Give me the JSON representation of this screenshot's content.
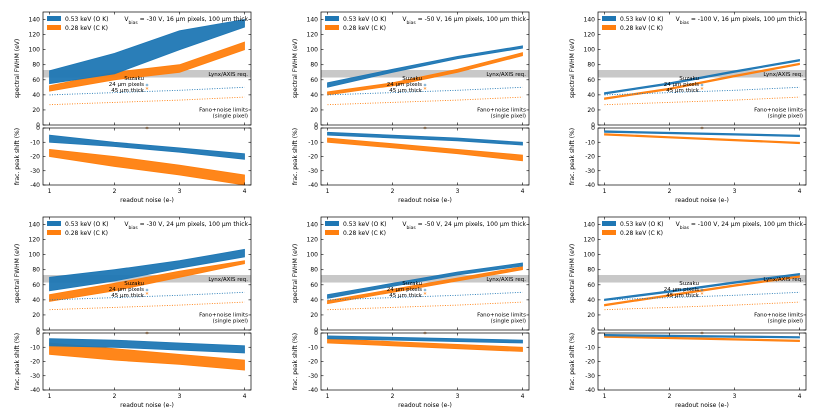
{
  "figure": {
    "colors": {
      "blue": "#1f77b4",
      "orange": "#ff7f0e",
      "band": "#c8c8c8",
      "axis": "#000000"
    },
    "legend": [
      "0.53 keV (O K)",
      "0.28 keV (C K)"
    ],
    "annotations": {
      "lynx": "Lynx/AXIS req.",
      "suzaku": "Suzaku",
      "px24": "24 µm pixels",
      "thick45": "45 µm thick",
      "fano1": "Fano+noise limits",
      "fano2": "(single pixel)"
    },
    "fwhm_axis": {
      "label": "spectral FWHM (eV)",
      "ylim": [
        0,
        150
      ],
      "ticks": [
        0,
        20,
        40,
        60,
        80,
        100,
        120,
        140
      ]
    },
    "shift_axis": {
      "label": "frac. peak shift (%)",
      "ylim": [
        -40,
        0
      ],
      "ticks": [
        0,
        -10,
        -20,
        -30,
        -40
      ]
    },
    "xaxis": {
      "label": "readout noise (e-)",
      "xlim": [
        0.9,
        4.1
      ],
      "ticks": [
        1,
        2,
        3,
        4
      ]
    }
  },
  "chart_data": [
    {
      "type": "area",
      "title": "Vbias = -30 V, 16 µm pixels, 100 µm thick",
      "title_prefix": "V",
      "title_sub": "bias",
      "title_rest": " = -30 V, 16 µm pixels, 100 µm thick",
      "x": [
        1,
        2,
        3,
        4
      ],
      "fwhm": {
        "blue": {
          "low": [
            55,
            68,
            100,
            130
          ],
          "high": [
            72,
            95,
            125,
            140
          ]
        },
        "orange": {
          "low": [
            45,
            60,
            70,
            100
          ],
          "high": [
            52,
            70,
            80,
            110
          ]
        }
      },
      "shift": {
        "blue": {
          "low": [
            -10,
            -13,
            -17,
            -22
          ],
          "high": [
            -5,
            -10,
            -14,
            -18
          ]
        },
        "orange": {
          "low": [
            -20,
            -27,
            -33,
            -40
          ],
          "high": [
            -15,
            -20,
            -26,
            -33
          ]
        }
      },
      "lynx_band": [
        63,
        73
      ],
      "suzaku": {
        "x": 2.5,
        "blue": 52,
        "orange": 47,
        "blue_shift": 0,
        "orange_shift": 0
      },
      "fano": {
        "blue": [
          40,
          43,
          46,
          50
        ],
        "orange": [
          27,
          30,
          33,
          37
        ]
      }
    },
    {
      "type": "area",
      "title": "Vbias = -50 V, 16 µm pixels, 100 µm thick",
      "title_prefix": "V",
      "title_sub": "bias",
      "title_rest": " = -50 V, 16 µm pixels, 100 µm thick",
      "x": [
        1,
        2,
        3,
        4
      ],
      "fwhm": {
        "blue": {
          "low": [
            50,
            70,
            88,
            102
          ],
          "high": [
            56,
            74,
            91,
            105
          ]
        },
        "orange": {
          "low": [
            40,
            52,
            70,
            92
          ],
          "high": [
            44,
            56,
            74,
            96
          ]
        }
      },
      "shift": {
        "blue": {
          "low": [
            -5,
            -7,
            -9,
            -12
          ],
          "high": [
            -3,
            -5,
            -7,
            -10
          ]
        },
        "orange": {
          "low": [
            -10,
            -14,
            -18,
            -23
          ],
          "high": [
            -7,
            -11,
            -15,
            -19
          ]
        }
      },
      "lynx_band": [
        63,
        73
      ],
      "suzaku": {
        "x": 2.5,
        "blue": 52,
        "orange": 47,
        "blue_shift": 0,
        "orange_shift": 0
      },
      "fano": {
        "blue": [
          40,
          43,
          46,
          50
        ],
        "orange": [
          27,
          30,
          33,
          37
        ]
      }
    },
    {
      "type": "area",
      "title": "Vbias = -100 V, 16 µm pixels, 100 µm thick",
      "title_prefix": "V",
      "title_sub": "bias",
      "title_rest": " = -100 V, 16 µm pixels, 100 µm thick",
      "x": [
        1,
        2,
        3,
        4
      ],
      "fwhm": {
        "blue": {
          "low": [
            41,
            54,
            70,
            85
          ],
          "high": [
            43,
            56,
            72,
            87
          ]
        },
        "orange": {
          "low": [
            34,
            47,
            64,
            80
          ],
          "high": [
            36,
            49,
            66,
            82
          ]
        }
      },
      "shift": {
        "blue": {
          "low": [
            -3,
            -4,
            -5,
            -6
          ],
          "high": [
            -2,
            -3,
            -4,
            -5
          ]
        },
        "orange": {
          "low": [
            -5,
            -7,
            -9,
            -11
          ],
          "high": [
            -4,
            -6,
            -8,
            -10
          ]
        }
      },
      "lynx_band": [
        63,
        73
      ],
      "suzaku": {
        "x": 2.5,
        "blue": 52,
        "orange": 47,
        "blue_shift": 0,
        "orange_shift": 0
      },
      "fano": {
        "blue": [
          40,
          43,
          46,
          50
        ],
        "orange": [
          27,
          30,
          33,
          37
        ]
      }
    },
    {
      "type": "area",
      "title": "Vbias = -30 V, 24 µm pixels, 100 µm thick",
      "title_prefix": "V",
      "title_sub": "bias",
      "title_rest": " = -30 V, 24 µm pixels, 100 µm thick",
      "x": [
        1,
        2,
        3,
        4
      ],
      "fwhm": {
        "blue": {
          "low": [
            52,
            65,
            82,
            97
          ],
          "high": [
            70,
            80,
            92,
            107
          ]
        },
        "orange": {
          "low": [
            38,
            52,
            70,
            88
          ],
          "high": [
            47,
            62,
            78,
            92
          ]
        }
      },
      "shift": {
        "blue": {
          "low": [
            -9,
            -10,
            -12,
            -14
          ],
          "high": [
            -4,
            -5,
            -7,
            -9
          ]
        },
        "orange": {
          "low": [
            -15,
            -19,
            -22,
            -26
          ],
          "high": [
            -7,
            -11,
            -15,
            -19
          ]
        }
      },
      "lynx_band": [
        63,
        73
      ],
      "suzaku": {
        "x": 2.5,
        "blue": 52,
        "orange": 47,
        "blue_shift": 0,
        "orange_shift": 0
      },
      "fano": {
        "blue": [
          40,
          43,
          46,
          50
        ],
        "orange": [
          27,
          30,
          33,
          37
        ]
      }
    },
    {
      "type": "area",
      "title": "Vbias = -50 V, 24 µm pixels, 100 µm thick",
      "title_prefix": "V",
      "title_sub": "bias",
      "title_rest": " = -50 V, 24 µm pixels, 100 µm thick",
      "x": [
        1,
        2,
        3,
        4
      ],
      "fwhm": {
        "blue": {
          "low": [
            42,
            58,
            73,
            85
          ],
          "high": [
            47,
            62,
            77,
            89
          ]
        },
        "orange": {
          "low": [
            35,
            50,
            65,
            80
          ],
          "high": [
            39,
            54,
            69,
            84
          ]
        }
      },
      "shift": {
        "blue": {
          "low": [
            -4,
            -5,
            -6,
            -7
          ],
          "high": [
            -2,
            -3,
            -4,
            -5
          ]
        },
        "orange": {
          "low": [
            -7,
            -9,
            -11,
            -13
          ],
          "high": [
            -4,
            -6,
            -8,
            -10
          ]
        }
      },
      "lynx_band": [
        63,
        73
      ],
      "suzaku": {
        "x": 2.5,
        "blue": 52,
        "orange": 47,
        "blue_shift": 0,
        "orange_shift": 0
      },
      "fano": {
        "blue": [
          40,
          43,
          46,
          50
        ],
        "orange": [
          27,
          30,
          33,
          37
        ]
      }
    },
    {
      "type": "area",
      "title": "Vbias = -100 V, 24 µm pixels, 100 µm thick",
      "title_prefix": "V",
      "title_sub": "bias",
      "title_rest": " = -100 V, 24 µm pixels, 100 µm thick",
      "x": [
        1,
        2,
        3,
        4
      ],
      "fwhm": {
        "blue": {
          "low": [
            39,
            50,
            62,
            73
          ],
          "high": [
            41,
            52,
            64,
            75
          ]
        },
        "orange": {
          "low": [
            32,
            45,
            58,
            70
          ],
          "high": [
            34,
            47,
            60,
            72
          ]
        }
      },
      "shift": {
        "blue": {
          "low": [
            -2,
            -2.5,
            -3,
            -3.5
          ],
          "high": [
            -1,
            -1.5,
            -2,
            -2.5
          ]
        },
        "orange": {
          "low": [
            -3,
            -4,
            -5,
            -6
          ],
          "high": [
            -2,
            -3,
            -4,
            -5
          ]
        }
      },
      "lynx_band": [
        63,
        73
      ],
      "suzaku": {
        "x": 2.5,
        "blue": 52,
        "orange": 47,
        "blue_shift": 0,
        "orange_shift": 0
      },
      "fano": {
        "blue": [
          40,
          43,
          46,
          50
        ],
        "orange": [
          27,
          30,
          33,
          37
        ]
      }
    }
  ]
}
